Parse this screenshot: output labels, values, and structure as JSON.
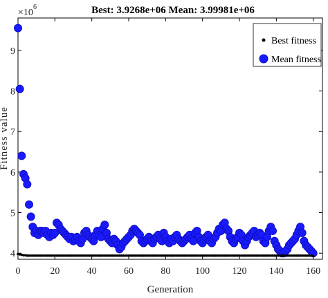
{
  "chart_data": {
    "type": "scatter",
    "title": "Best: 3.9268e+06 Mean: 3.99981e+06",
    "xlabel": "Generation",
    "ylabel": "Fitness value",
    "y_exponent_label": "×10",
    "y_exponent_power": "6",
    "xlim": [
      0,
      165
    ],
    "ylim": [
      3.85,
      9.8
    ],
    "x_ticks": [
      0,
      20,
      40,
      60,
      80,
      100,
      120,
      140,
      160
    ],
    "y_ticks": [
      4,
      5,
      6,
      7,
      8,
      9
    ],
    "grid": false,
    "legend_position": "top-right",
    "series": [
      {
        "name": "Best fitness",
        "color": "#000000",
        "marker": "dot",
        "x": [
          0,
          1,
          2,
          3,
          4,
          5,
          6,
          7,
          8,
          9,
          10,
          11,
          12,
          13,
          14,
          15,
          16,
          17,
          18,
          19,
          20,
          21,
          22,
          23,
          24,
          25,
          26,
          27,
          28,
          29,
          30,
          31,
          32,
          33,
          34,
          35,
          36,
          37,
          38,
          39,
          40,
          41,
          42,
          43,
          44,
          45,
          46,
          47,
          48,
          49,
          50,
          51,
          52,
          53,
          54,
          55,
          56,
          57,
          58,
          59,
          60,
          61,
          62,
          63,
          64,
          65,
          66,
          67,
          68,
          69,
          70,
          71,
          72,
          73,
          74,
          75,
          76,
          77,
          78,
          79,
          80,
          81,
          82,
          83,
          84,
          85,
          86,
          87,
          88,
          89,
          90,
          91,
          92,
          93,
          94,
          95,
          96,
          97,
          98,
          99,
          100,
          101,
          102,
          103,
          104,
          105,
          106,
          107,
          108,
          109,
          110,
          111,
          112,
          113,
          114,
          115,
          116,
          117,
          118,
          119,
          120,
          121,
          122,
          123,
          124,
          125,
          126,
          127,
          128,
          129,
          130,
          131,
          132,
          133,
          134,
          135,
          136,
          137,
          138,
          139,
          140,
          141,
          142,
          143,
          144,
          145,
          146,
          147,
          148,
          149,
          150,
          151,
          152,
          153,
          154,
          155,
          156,
          157,
          158,
          159,
          160
        ],
        "y": [
          3.98,
          3.97,
          3.96,
          3.95,
          3.95,
          3.94,
          3.94,
          3.94,
          3.94,
          3.94,
          3.94,
          3.94,
          3.94,
          3.94,
          3.94,
          3.94,
          3.94,
          3.94,
          3.94,
          3.94,
          3.94,
          3.94,
          3.94,
          3.94,
          3.94,
          3.94,
          3.94,
          3.94,
          3.94,
          3.94,
          3.94,
          3.94,
          3.94,
          3.94,
          3.94,
          3.94,
          3.94,
          3.94,
          3.94,
          3.94,
          3.94,
          3.94,
          3.94,
          3.94,
          3.94,
          3.94,
          3.94,
          3.94,
          3.94,
          3.94,
          3.94,
          3.94,
          3.94,
          3.94,
          3.94,
          3.94,
          3.94,
          3.94,
          3.94,
          3.94,
          3.94,
          3.94,
          3.94,
          3.94,
          3.94,
          3.94,
          3.94,
          3.94,
          3.94,
          3.94,
          3.94,
          3.94,
          3.94,
          3.94,
          3.94,
          3.94,
          3.94,
          3.94,
          3.94,
          3.94,
          3.94,
          3.94,
          3.94,
          3.94,
          3.94,
          3.94,
          3.94,
          3.94,
          3.94,
          3.94,
          3.94,
          3.94,
          3.94,
          3.94,
          3.94,
          3.94,
          3.94,
          3.94,
          3.94,
          3.94,
          3.94,
          3.94,
          3.94,
          3.94,
          3.94,
          3.94,
          3.94,
          3.94,
          3.94,
          3.94,
          3.94,
          3.94,
          3.94,
          3.94,
          3.94,
          3.94,
          3.94,
          3.94,
          3.94,
          3.94,
          3.94,
          3.94,
          3.94,
          3.94,
          3.94,
          3.94,
          3.94,
          3.94,
          3.94,
          3.94,
          3.94,
          3.94,
          3.94,
          3.94,
          3.94,
          3.94,
          3.94,
          3.94,
          3.94,
          3.94,
          3.94,
          3.94,
          3.94,
          3.94,
          3.94,
          3.94,
          3.94,
          3.94,
          3.94,
          3.94,
          3.94,
          3.94,
          3.94,
          3.94,
          3.94,
          3.94,
          3.94,
          3.94,
          3.94,
          3.94,
          3.93
        ]
      },
      {
        "name": "Mean fitness",
        "color": "#1a1aff",
        "marker": "circle",
        "x": [
          0,
          1,
          2,
          3,
          4,
          5,
          6,
          7,
          8,
          9,
          10,
          11,
          12,
          13,
          14,
          15,
          16,
          17,
          18,
          19,
          20,
          21,
          22,
          23,
          24,
          25,
          26,
          27,
          28,
          29,
          30,
          31,
          32,
          33,
          34,
          35,
          36,
          37,
          38,
          39,
          40,
          41,
          42,
          43,
          44,
          45,
          46,
          47,
          48,
          49,
          50,
          51,
          52,
          53,
          54,
          55,
          56,
          57,
          58,
          59,
          60,
          61,
          62,
          63,
          64,
          65,
          66,
          67,
          68,
          69,
          70,
          71,
          72,
          73,
          74,
          75,
          76,
          77,
          78,
          79,
          80,
          81,
          82,
          83,
          84,
          85,
          86,
          87,
          88,
          89,
          90,
          91,
          92,
          93,
          94,
          95,
          96,
          97,
          98,
          99,
          100,
          101,
          102,
          103,
          104,
          105,
          106,
          107,
          108,
          109,
          110,
          111,
          112,
          113,
          114,
          115,
          116,
          117,
          118,
          119,
          120,
          121,
          122,
          123,
          124,
          125,
          126,
          127,
          128,
          129,
          130,
          131,
          132,
          133,
          134,
          135,
          136,
          137,
          138,
          139,
          140,
          141,
          142,
          143,
          144,
          145,
          146,
          147,
          148,
          149,
          150,
          151,
          152,
          153,
          154,
          155,
          156,
          157,
          158,
          159,
          160
        ],
        "y": [
          9.55,
          8.05,
          6.4,
          5.95,
          5.85,
          5.7,
          5.2,
          4.9,
          4.65,
          4.5,
          4.55,
          4.45,
          4.55,
          4.55,
          4.5,
          4.55,
          4.45,
          4.4,
          4.5,
          4.45,
          4.5,
          4.75,
          4.7,
          4.6,
          4.55,
          4.5,
          4.45,
          4.4,
          4.35,
          4.4,
          4.3,
          4.35,
          4.4,
          4.3,
          4.25,
          4.35,
          4.5,
          4.55,
          4.45,
          4.4,
          4.35,
          4.3,
          4.45,
          4.55,
          4.45,
          4.4,
          4.6,
          4.7,
          4.5,
          4.35,
          4.3,
          4.25,
          4.35,
          4.3,
          4.2,
          4.1,
          4.15,
          4.25,
          4.3,
          4.35,
          4.4,
          4.45,
          4.55,
          4.6,
          4.55,
          4.5,
          4.45,
          4.3,
          4.25,
          4.3,
          4.35,
          4.4,
          4.3,
          4.25,
          4.35,
          4.4,
          4.45,
          4.35,
          4.3,
          4.5,
          4.4,
          4.3,
          4.25,
          4.35,
          4.3,
          4.4,
          4.45,
          4.35,
          4.3,
          4.25,
          4.3,
          4.35,
          4.4,
          4.45,
          4.35,
          4.3,
          4.5,
          4.55,
          4.4,
          4.3,
          4.25,
          4.35,
          4.4,
          4.45,
          4.3,
          4.25,
          4.35,
          4.4,
          4.5,
          4.6,
          4.55,
          4.7,
          4.75,
          4.6,
          4.55,
          4.4,
          4.3,
          4.25,
          4.35,
          4.4,
          4.5,
          4.45,
          4.3,
          4.2,
          4.3,
          4.4,
          4.45,
          4.5,
          4.55,
          4.4,
          4.45,
          4.5,
          4.45,
          4.3,
          4.25,
          4.4,
          4.55,
          4.65,
          4.55,
          4.3,
          4.2,
          4.1,
          4.05,
          4.0,
          4.0,
          4.05,
          4.1,
          4.2,
          4.25,
          4.3,
          4.35,
          4.45,
          4.55,
          4.65,
          4.5,
          4.3,
          4.2,
          4.15,
          4.1,
          4.05,
          4.0
        ]
      }
    ]
  }
}
